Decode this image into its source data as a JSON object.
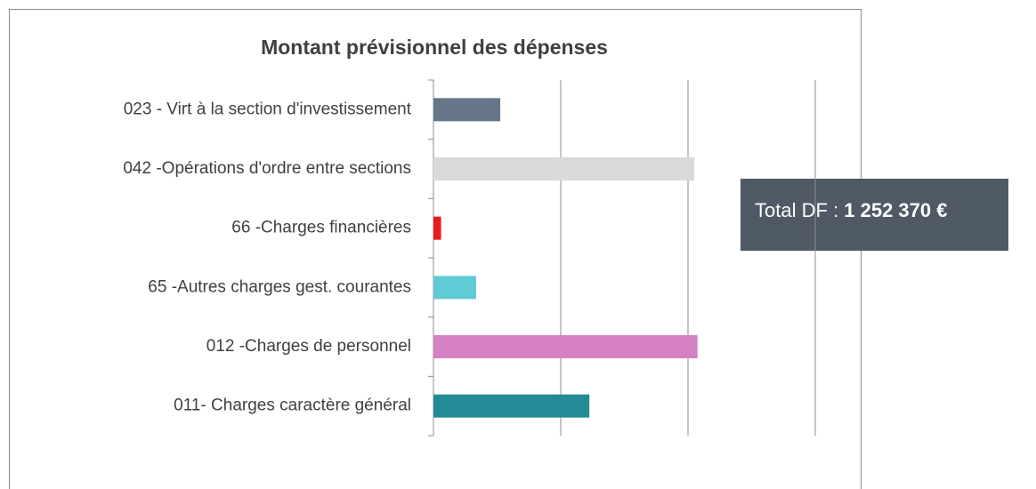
{
  "chart_data": {
    "type": "barh",
    "title": "Montant prévisionnel des dépenses",
    "categories": [
      "023 - Virt à la section d'investissement",
      "042 -Opérations d'ordre entre sections",
      "66 -Charges financières",
      "65 -Autres charges gest. courantes",
      "012 -Charges de personnel",
      "011- Charges caractère général"
    ],
    "values": [
      105000,
      410000,
      12000,
      67000,
      415000,
      245000
    ],
    "colors": [
      "#647687",
      "#d9d9d9",
      "#e81c1c",
      "#5fcbd4",
      "#d581c4",
      "#238a96"
    ],
    "xlim": [
      0,
      600000
    ],
    "xticks": [
      0,
      200000,
      400000,
      600000
    ],
    "grid": true,
    "annotation": {
      "label": "Total DF :",
      "value": "1 252 370 €"
    }
  }
}
